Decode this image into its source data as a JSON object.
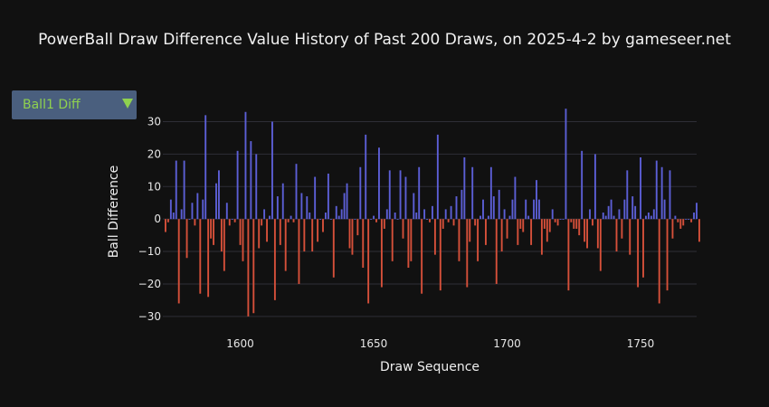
{
  "title": "PowerBall Draw Difference Value History of Past 200 Draws, on 2025-4-2 by gameseer.net",
  "selector": {
    "value": "Ball1 Diff"
  },
  "colors": {
    "positive": "#5c5fd6",
    "negative": "#d6503a",
    "grid": "#2e2e36",
    "background": "#111111"
  },
  "chart_data": {
    "type": "bar",
    "xlabel": "Draw Sequence",
    "ylabel": "Ball Difference",
    "xlim": [
      1571,
      1771
    ],
    "ylim": [
      -32,
      36
    ],
    "xticks": [
      1600,
      1650,
      1700,
      1750
    ],
    "yticks": [
      -30,
      -20,
      -10,
      0,
      10,
      20,
      30
    ],
    "grid": true,
    "x_start": 1572,
    "values": [
      -4,
      -1,
      6,
      2,
      18,
      -26,
      3,
      18,
      -12,
      0,
      5,
      -2,
      8,
      -23,
      6,
      32,
      -24,
      -6,
      -8,
      11,
      15,
      -10,
      -16,
      5,
      -2,
      0,
      -1,
      21,
      -8,
      -13,
      33,
      -30,
      24,
      -29,
      20,
      -9,
      -2,
      3,
      -7,
      1,
      30,
      -25,
      7,
      -8,
      11,
      -16,
      -1,
      1,
      -1,
      17,
      -20,
      8,
      -10,
      7,
      2,
      -10,
      13,
      -7,
      0,
      -4,
      2,
      14,
      0,
      -18,
      4,
      1,
      3,
      8,
      11,
      -9,
      -11,
      0,
      -5,
      16,
      -15,
      26,
      -26,
      0,
      1,
      -1,
      22,
      -21,
      -3,
      3,
      15,
      -13,
      2,
      0,
      15,
      -6,
      13,
      -15,
      -13,
      8,
      2,
      16,
      -23,
      3,
      0,
      -1,
      4,
      -11,
      26,
      -22,
      -3,
      3,
      -1,
      4,
      -2,
      7,
      -13,
      9,
      19,
      -21,
      -7,
      16,
      -2,
      -13,
      1,
      6,
      -8,
      1,
      16,
      7,
      -20,
      9,
      -10,
      3,
      -6,
      1,
      6,
      13,
      -8,
      -3,
      -4,
      6,
      1,
      -8,
      6,
      12,
      6,
      -11,
      -3,
      -7,
      -4,
      3,
      -1,
      -2,
      0,
      0,
      34,
      -22,
      -1,
      -3,
      -3,
      -5,
      21,
      -7,
      -9,
      3,
      -2,
      20,
      -9,
      -16,
      2,
      1,
      4,
      6,
      1,
      -10,
      3,
      -6,
      6,
      15,
      -11,
      7,
      4,
      -21,
      19,
      -18,
      1,
      2,
      1,
      3,
      18,
      -26,
      16,
      6,
      -22,
      15,
      -6,
      1,
      -1,
      -3,
      -2,
      0,
      0,
      -1,
      2,
      5,
      -7
    ]
  }
}
